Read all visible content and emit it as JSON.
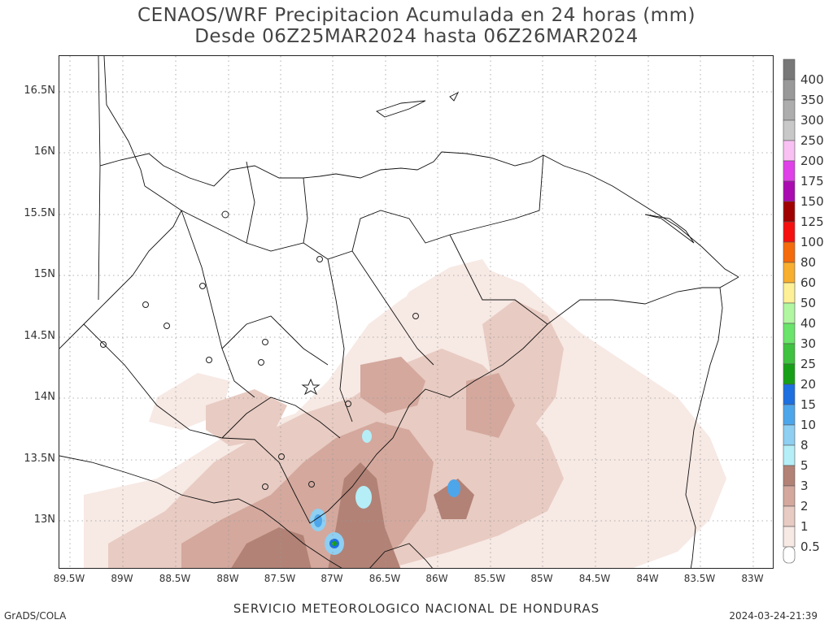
{
  "title": {
    "line1": "CENAOS/WRF Precipitacion Acumulada en 24 horas (mm)",
    "line2": "Desde 06Z25MAR2024 hasta 06Z26MAR2024"
  },
  "map": {
    "lat_labels": [
      "16.5N",
      "16N",
      "15.5N",
      "15N",
      "14.5N",
      "14N",
      "13.5N",
      "13N"
    ],
    "lon_labels": [
      "89.5W",
      "89W",
      "88.5W",
      "88W",
      "87.5W",
      "87W",
      "86.5W",
      "86W",
      "85.5W",
      "85W",
      "84.5W",
      "84W",
      "83.5W",
      "83W"
    ],
    "grid_lines": "dotted"
  },
  "colorbar": {
    "levels": [
      {
        "label": "400",
        "color": "#787878"
      },
      {
        "label": "350",
        "color": "#999999"
      },
      {
        "label": "300",
        "color": "#adadad"
      },
      {
        "label": "250",
        "color": "#c8c8c8"
      },
      {
        "label": "200",
        "color": "#f9c1f3"
      },
      {
        "label": "175",
        "color": "#e040e8"
      },
      {
        "label": "150",
        "color": "#a90bb0"
      },
      {
        "label": "125",
        "color": "#a00000"
      },
      {
        "label": "100",
        "color": "#f50f0f"
      },
      {
        "label": "80",
        "color": "#f56a0a"
      },
      {
        "label": "60",
        "color": "#f8ae2e"
      },
      {
        "label": "50",
        "color": "#fdf096"
      },
      {
        "label": "40",
        "color": "#b1f6a0"
      },
      {
        "label": "30",
        "color": "#6ae46a"
      },
      {
        "label": "25",
        "color": "#3fc23f"
      },
      {
        "label": "20",
        "color": "#17a017"
      },
      {
        "label": "15",
        "color": "#1e6fe0"
      },
      {
        "label": "10",
        "color": "#4ea6ea"
      },
      {
        "label": "8",
        "color": "#8ecff2"
      },
      {
        "label": "5",
        "color": "#b5eef7"
      },
      {
        "label": "3",
        "color": "#b28276"
      },
      {
        "label": "2",
        "color": "#d4a89d"
      },
      {
        "label": "1",
        "color": "#e8cbc2"
      },
      {
        "label": "0.5",
        "color": "#f7e9e4"
      }
    ],
    "bottom_color": "#ffffff"
  },
  "footer": {
    "left": "GrADS/COLA",
    "center": "SERVICIO METEOROLOGICO NACIONAL DE HONDURAS",
    "right": "2024-03-24-21:39"
  }
}
